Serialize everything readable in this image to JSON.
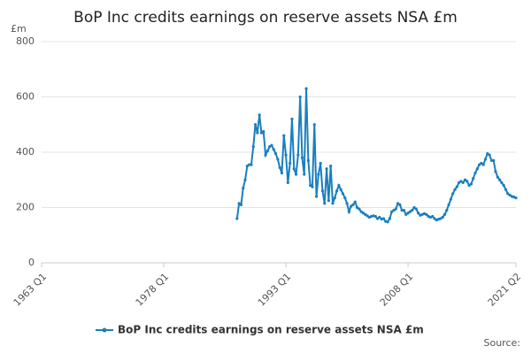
{
  "chart_data": {
    "type": "line",
    "title": "BoP Inc credits earnings on reserve assets NSA £m",
    "y_label": "£m",
    "source": "Source:",
    "categories": [
      "1963 Q1",
      null,
      null,
      null,
      null,
      null,
      null,
      null,
      null,
      null,
      null,
      null,
      null,
      null,
      null,
      null,
      null,
      null,
      null,
      null,
      null,
      null,
      null,
      null,
      null,
      null,
      null,
      null,
      null,
      null,
      null,
      null,
      null,
      null,
      null,
      null,
      null,
      null,
      null,
      null,
      null,
      null,
      null,
      null,
      null,
      null,
      null,
      null,
      null,
      null,
      null,
      null,
      null,
      null,
      null,
      null,
      null,
      null,
      null,
      null,
      "1978 Q1",
      null,
      null,
      null,
      null,
      null,
      null,
      null,
      null,
      null,
      null,
      null,
      null,
      null,
      null,
      null,
      null,
      null,
      null,
      null,
      null,
      null,
      null,
      null,
      null,
      null,
      null,
      null,
      null,
      null,
      null,
      null,
      null,
      null,
      null,
      null,
      null,
      null,
      null,
      null,
      null,
      null,
      null,
      null,
      null,
      null,
      null,
      null,
      null,
      null,
      null,
      null,
      null,
      null,
      null,
      null,
      null,
      null,
      null,
      null,
      "1993 Q1",
      null,
      null,
      null,
      null,
      null,
      null,
      null,
      null,
      null,
      null,
      null,
      null,
      null,
      null,
      null,
      null,
      null,
      null,
      null,
      null,
      null,
      null,
      null,
      null,
      null,
      null,
      null,
      null,
      null,
      null,
      null,
      null,
      null,
      null,
      null,
      null,
      null,
      null,
      null,
      null,
      null,
      null,
      null,
      null,
      null,
      null,
      null,
      null,
      null,
      null,
      null,
      null,
      null,
      null,
      null,
      null,
      null,
      null,
      null,
      "2008 Q1",
      null,
      null,
      null,
      null,
      null,
      null,
      null,
      null,
      null,
      null,
      null,
      null,
      null,
      null,
      null,
      null,
      null,
      null,
      null,
      null,
      null,
      null,
      null,
      null,
      null,
      null,
      null,
      null,
      null,
      null,
      null,
      null,
      null,
      null,
      null,
      null,
      null,
      null,
      null,
      null,
      null,
      null,
      null,
      null,
      null,
      null,
      null,
      null,
      null,
      null,
      null,
      null,
      "2021 Q2"
    ],
    "series": [
      {
        "name": "BoP Inc credits earnings on reserve assets NSA £m",
        "color": "#1a7fbf",
        "values": [
          null,
          null,
          null,
          null,
          null,
          null,
          null,
          null,
          null,
          null,
          null,
          null,
          null,
          null,
          null,
          null,
          null,
          null,
          null,
          null,
          null,
          null,
          null,
          null,
          null,
          null,
          null,
          null,
          null,
          null,
          null,
          null,
          null,
          null,
          null,
          null,
          null,
          null,
          null,
          null,
          null,
          null,
          null,
          null,
          null,
          null,
          null,
          null,
          null,
          null,
          null,
          null,
          null,
          null,
          null,
          null,
          null,
          null,
          null,
          null,
          null,
          null,
          null,
          null,
          null,
          null,
          null,
          null,
          null,
          null,
          null,
          null,
          null,
          null,
          null,
          null,
          null,
          null,
          null,
          null,
          null,
          null,
          null,
          null,
          null,
          null,
          null,
          null,
          null,
          null,
          null,
          null,
          null,
          null,
          null,
          null,
          160,
          215,
          210,
          270,
          300,
          350,
          355,
          355,
          420,
          500,
          470,
          535,
          470,
          475,
          390,
          405,
          420,
          425,
          410,
          395,
          375,
          345,
          325,
          460,
          390,
          290,
          360,
          520,
          340,
          320,
          390,
          600,
          380,
          320,
          630,
          370,
          280,
          275,
          500,
          240,
          320,
          360,
          260,
          215,
          340,
          225,
          350,
          215,
          235,
          260,
          280,
          265,
          250,
          235,
          215,
          185,
          205,
          210,
          220,
          200,
          195,
          185,
          180,
          175,
          170,
          165,
          168,
          170,
          168,
          160,
          165,
          158,
          160,
          150,
          148,
          160,
          185,
          190,
          195,
          215,
          210,
          190,
          190,
          175,
          180,
          185,
          190,
          200,
          195,
          180,
          172,
          175,
          178,
          175,
          168,
          165,
          168,
          160,
          155,
          158,
          160,
          165,
          175,
          190,
          210,
          230,
          250,
          265,
          275,
          290,
          295,
          290,
          300,
          295,
          280,
          285,
          305,
          325,
          340,
          355,
          360,
          355,
          375,
          395,
          390,
          370,
          370,
          330,
          310,
          300,
          290,
          280,
          265,
          250,
          245,
          240,
          238,
          235
        ]
      }
    ],
    "ylim": [
      0,
      800
    ],
    "yticks": [
      0,
      200,
      400,
      600,
      800
    ],
    "grid": true
  }
}
